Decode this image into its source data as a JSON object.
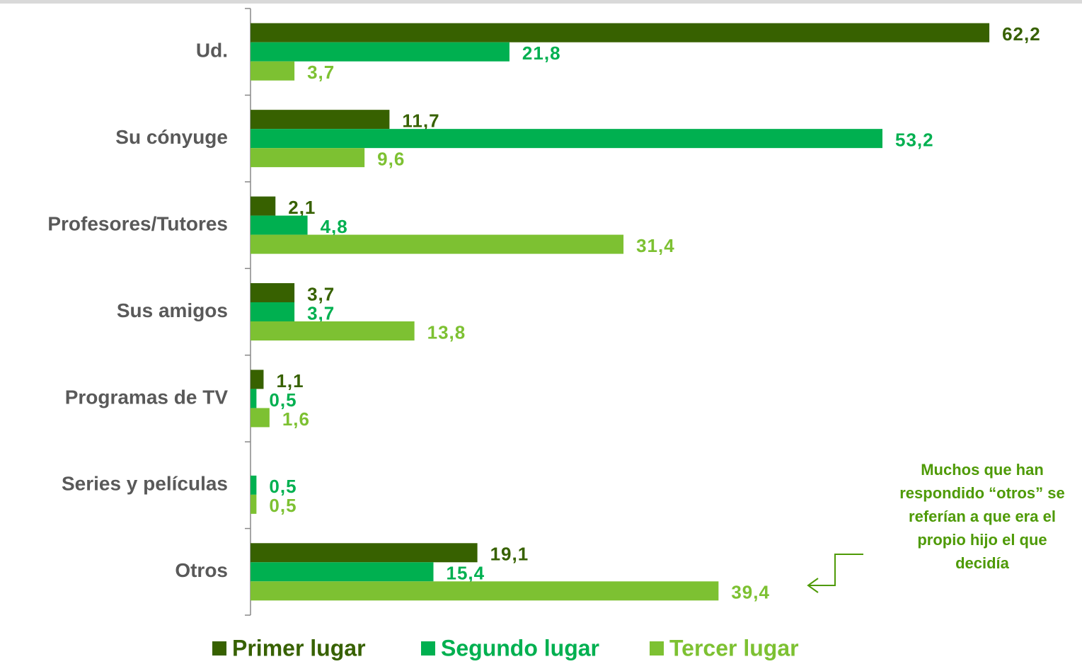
{
  "chart_data": {
    "type": "hbar",
    "categories": [
      "Ud.",
      "Su cónyuge",
      "Profesores/Tutores",
      "Sus amigos",
      "Programas de TV",
      "Series y películas",
      "Otros"
    ],
    "series": [
      {
        "name": "Primer lugar",
        "color": "#376100",
        "values": [
          62.2,
          11.7,
          2.1,
          3.7,
          1.1,
          null,
          19.1
        ],
        "value_labels": [
          "62,2",
          "11,7",
          "2,1",
          "3,7",
          "1,1",
          null,
          "19,1"
        ]
      },
      {
        "name": "Segundo lugar",
        "color": "#00b050",
        "values": [
          21.8,
          53.2,
          4.8,
          3.7,
          0.5,
          0.5,
          15.4
        ],
        "value_labels": [
          "21,8",
          "53,2",
          "4,8",
          "3,7",
          "0,5",
          "0,5",
          "15,4"
        ]
      },
      {
        "name": "Tercer lugar",
        "color": "#7dc132",
        "values": [
          3.7,
          9.6,
          31.4,
          13.8,
          1.6,
          0.5,
          39.4
        ],
        "value_labels": [
          "3,7",
          "9,6",
          "31,4",
          "13,8",
          "1,6",
          "0,5",
          "39,4"
        ]
      }
    ],
    "xlim": [
      0,
      70
    ],
    "annotation": [
      "Muchos que han",
      "respondido “otros” se",
      "referían a que era el",
      "propio hijo el que",
      "decidía"
    ]
  }
}
